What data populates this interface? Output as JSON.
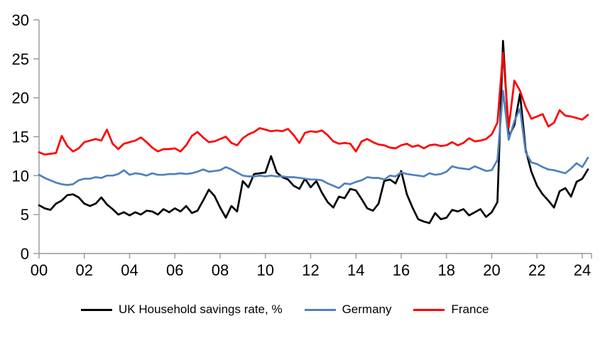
{
  "chart_data": {
    "type": "line",
    "title": "",
    "frequency": "quarterly",
    "x_start": "2000 Q1",
    "x_end": "2024 Q2",
    "points_per_year": 4,
    "grid": false,
    "axis_color": "#969696",
    "x_axis": {
      "tick_labels": [
        "00",
        "02",
        "04",
        "06",
        "08",
        "10",
        "12",
        "14",
        "16",
        "18",
        "20",
        "22",
        "24"
      ],
      "tick_years": [
        0,
        2,
        4,
        6,
        8,
        10,
        12,
        14,
        16,
        18,
        20,
        22,
        24
      ]
    },
    "y_axis": {
      "min": 0,
      "max": 30,
      "tick_interval": 5,
      "tick_labels": [
        "0",
        "5",
        "10",
        "15",
        "20",
        "25",
        "30"
      ]
    },
    "legend": {
      "position": "bottom",
      "entries": [
        "UK Household savings rate, %",
        "Germany",
        "France"
      ]
    },
    "series": [
      {
        "name": "UK Household savings rate, %",
        "color": "#000000",
        "values": [
          6.2,
          5.8,
          5.6,
          6.4,
          6.8,
          7.5,
          7.6,
          7.2,
          6.4,
          6.1,
          6.4,
          7.2,
          6.3,
          5.7,
          5.0,
          5.3,
          4.9,
          5.3,
          5.0,
          5.5,
          5.4,
          5.0,
          5.7,
          5.3,
          5.8,
          5.4,
          6.1,
          5.2,
          5.5,
          6.8,
          8.2,
          7.4,
          5.9,
          4.6,
          6.1,
          5.4,
          9.3,
          8.5,
          10.2,
          10.3,
          10.4,
          12.5,
          10.4,
          9.8,
          9.5,
          8.7,
          8.3,
          9.6,
          8.5,
          9.3,
          7.8,
          6.6,
          5.9,
          7.3,
          7.1,
          8.3,
          8.1,
          7.0,
          5.8,
          5.5,
          6.4,
          9.3,
          9.5,
          9.0,
          10.6,
          7.6,
          5.9,
          4.4,
          4.1,
          3.9,
          5.2,
          4.4,
          4.6,
          5.6,
          5.4,
          5.7,
          4.9,
          5.3,
          5.7,
          4.7,
          5.3,
          6.6,
          27.3,
          15.0,
          16.5,
          20.5,
          13.3,
          10.5,
          8.7,
          7.6,
          6.8,
          5.9,
          8.0,
          8.4,
          7.3,
          9.2,
          9.6,
          10.8
        ]
      },
      {
        "name": "Germany",
        "color": "#4F81BD",
        "values": [
          10.1,
          9.7,
          9.4,
          9.1,
          8.9,
          8.8,
          8.9,
          9.4,
          9.6,
          9.6,
          9.8,
          9.7,
          10.0,
          10.0,
          10.2,
          10.7,
          10.1,
          10.3,
          10.2,
          10.0,
          10.3,
          10.1,
          10.1,
          10.2,
          10.2,
          10.3,
          10.2,
          10.3,
          10.5,
          10.8,
          10.5,
          10.6,
          10.7,
          11.1,
          10.8,
          10.4,
          10.0,
          9.9,
          9.9,
          10.0,
          9.9,
          10.0,
          9.9,
          9.9,
          9.8,
          9.8,
          9.7,
          9.6,
          9.5,
          9.5,
          9.4,
          9.0,
          8.7,
          8.4,
          9.0,
          8.9,
          9.2,
          9.4,
          9.8,
          9.7,
          9.7,
          9.5,
          10.0,
          9.9,
          10.4,
          10.2,
          10.1,
          10.0,
          9.9,
          10.3,
          10.1,
          10.2,
          10.5,
          11.2,
          11.0,
          10.9,
          10.8,
          11.2,
          10.9,
          10.6,
          10.7,
          12.0,
          20.9,
          14.6,
          17.0,
          18.6,
          13.0,
          11.7,
          11.5,
          11.1,
          10.8,
          10.7,
          10.5,
          10.3,
          10.9,
          11.6,
          11.1,
          12.3
        ]
      },
      {
        "name": "France",
        "color": "#FF0000",
        "values": [
          13.0,
          12.7,
          12.8,
          12.9,
          15.1,
          13.8,
          13.1,
          13.5,
          14.3,
          14.5,
          14.7,
          14.5,
          15.9,
          14.1,
          13.4,
          14.1,
          14.3,
          14.5,
          14.9,
          14.3,
          13.6,
          13.1,
          13.4,
          13.4,
          13.5,
          13.1,
          13.9,
          15.1,
          15.6,
          14.9,
          14.3,
          14.4,
          14.7,
          15.0,
          14.2,
          13.9,
          14.8,
          15.3,
          15.6,
          16.1,
          15.9,
          15.7,
          15.8,
          15.7,
          16.0,
          15.2,
          14.2,
          15.5,
          15.7,
          15.6,
          15.8,
          15.2,
          14.4,
          14.1,
          14.2,
          14.1,
          13.1,
          14.4,
          14.7,
          14.3,
          14.0,
          13.9,
          13.6,
          13.5,
          13.9,
          14.1,
          13.7,
          13.9,
          13.5,
          13.9,
          14.0,
          13.8,
          13.9,
          14.3,
          13.9,
          14.2,
          14.8,
          14.4,
          14.5,
          14.7,
          15.3,
          16.8,
          25.8,
          16.2,
          22.2,
          20.9,
          18.8,
          17.3,
          17.6,
          17.9,
          16.3,
          16.8,
          18.4,
          17.7,
          17.6,
          17.4,
          17.2,
          17.8
        ]
      }
    ]
  }
}
